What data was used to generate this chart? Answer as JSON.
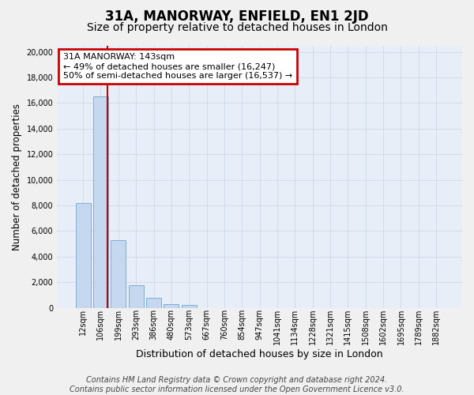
{
  "title": "31A, MANORWAY, ENFIELD, EN1 2JD",
  "subtitle": "Size of property relative to detached houses in London",
  "xlabel": "Distribution of detached houses by size in London",
  "ylabel": "Number of detached properties",
  "bin_labels": [
    "12sqm",
    "106sqm",
    "199sqm",
    "293sqm",
    "386sqm",
    "480sqm",
    "573sqm",
    "667sqm",
    "760sqm",
    "854sqm",
    "947sqm",
    "1041sqm",
    "1134sqm",
    "1228sqm",
    "1321sqm",
    "1415sqm",
    "1508sqm",
    "1602sqm",
    "1695sqm",
    "1789sqm",
    "1882sqm"
  ],
  "bar_heights": [
    8200,
    16500,
    5300,
    1750,
    750,
    300,
    200,
    0,
    0,
    0,
    0,
    0,
    0,
    0,
    0,
    0,
    0,
    0,
    0,
    0,
    0
  ],
  "bar_color": "#c5d8f0",
  "bar_edge_color": "#7bafd4",
  "property_line_color": "#cc0000",
  "property_sqm": 143,
  "bin_start_sqm": [
    12,
    106,
    199,
    293,
    386,
    480,
    573,
    667,
    760,
    854,
    947,
    1041,
    1134,
    1228,
    1321,
    1415,
    1508,
    1602,
    1695,
    1789,
    1882
  ],
  "annotation_line1": "31A MANORWAY: 143sqm",
  "annotation_line2": "← 49% of detached houses are smaller (16,247)",
  "annotation_line3": "50% of semi-detached houses are larger (16,537) →",
  "annotation_box_edgecolor": "#cc0000",
  "ylim_max": 20500,
  "yticks": [
    0,
    2000,
    4000,
    6000,
    8000,
    10000,
    12000,
    14000,
    16000,
    18000,
    20000
  ],
  "grid_color": "#d0d8e8",
  "ax_background_color": "#e8eef8",
  "fig_background_color": "#f0f0f0",
  "footer_text": "Contains HM Land Registry data © Crown copyright and database right 2024.\nContains public sector information licensed under the Open Government Licence v3.0.",
  "title_fontsize": 12,
  "subtitle_fontsize": 10,
  "xlabel_fontsize": 9,
  "ylabel_fontsize": 8.5,
  "tick_fontsize": 7,
  "annotation_fontsize": 8,
  "footer_fontsize": 7
}
